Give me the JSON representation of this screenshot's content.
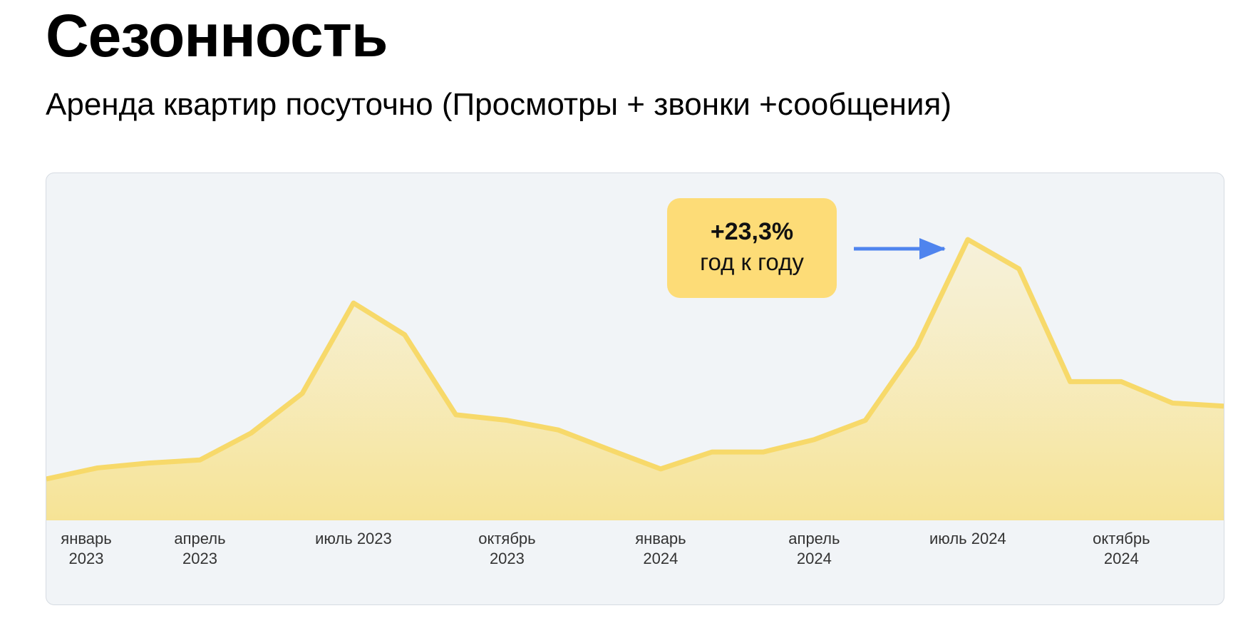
{
  "chart_data": {
    "type": "area",
    "title": "Сезонность",
    "subtitle": "Аренда квартир посуточно (Просмотры + звонки +сообщения)",
    "categories": [
      "январь 2023",
      null,
      null,
      "апрель 2023",
      null,
      null,
      "июль 2023",
      null,
      null,
      "октябрь 2023",
      null,
      null,
      "январь 2024",
      null,
      null,
      "апрель 2024",
      null,
      null,
      "июль 2024",
      null,
      null,
      "октябрь 2024",
      null,
      null
    ],
    "series": [
      {
        "color": "#f7d96a",
        "values": [
          12.0,
          15.2,
          16.6,
          17.5,
          25.3,
          36.8,
          63.0,
          53.8,
          30.6,
          29.0,
          26.2,
          20.5,
          14.9,
          19.8,
          19.8,
          23.4,
          29.0,
          50.3,
          81.4,
          72.9,
          40.2,
          40.2,
          34.0,
          33.1
        ]
      }
    ],
    "ylim": [
      0,
      100
    ],
    "annotation": {
      "value": "+23,3%",
      "text": "год к году"
    }
  }
}
